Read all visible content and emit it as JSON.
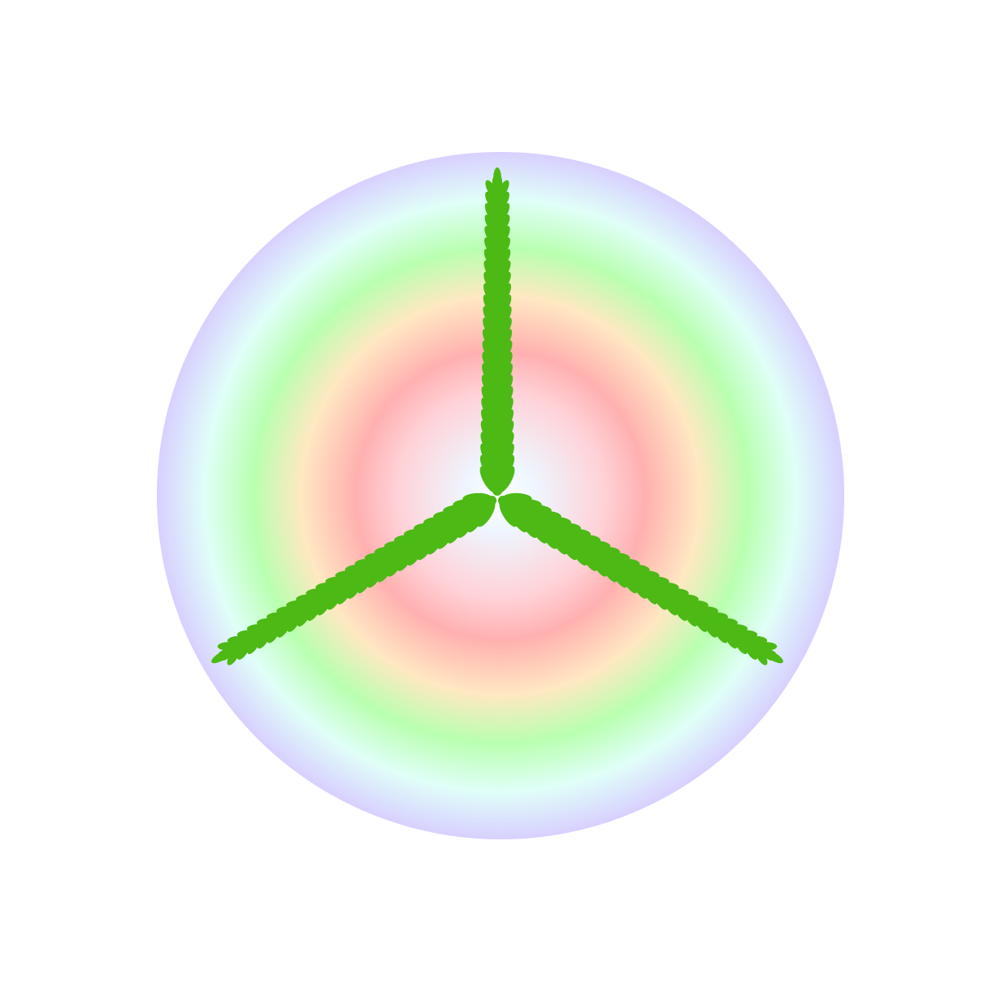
{
  "artwork": {
    "background": "#ffffff",
    "disc": {
      "rainbow_stops": [
        "#ffffff",
        "#eef6ff",
        "#ffd2d8",
        "#ffb0b0",
        "#ffe8c2",
        "#b9ffb0",
        "#e0fff8",
        "#d8d0ff"
      ]
    },
    "fronds": {
      "count": 3,
      "color": "#4cb915",
      "leaf_pairs_per_frond": 26
    }
  }
}
